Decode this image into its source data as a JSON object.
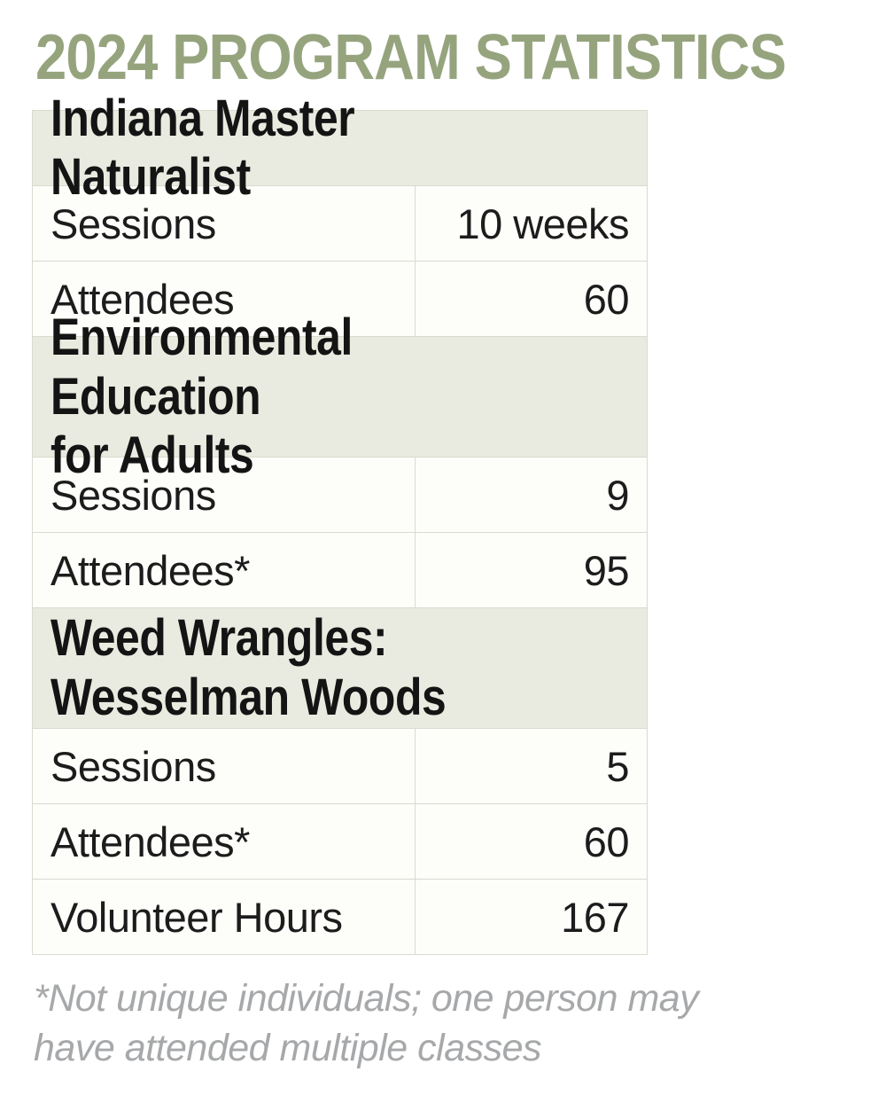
{
  "title": {
    "text": "2024 PROGRAM STATISTICS",
    "color": "#96a47e"
  },
  "table": {
    "header_bg": "#e9ebe0",
    "row_bg": "#fdfdfa",
    "border_color": "#d8dbce",
    "sections": [
      {
        "title": "Indiana Master Naturalist",
        "rows": [
          {
            "label": "Sessions",
            "value": "10 weeks"
          },
          {
            "label": "Attendees",
            "value": "60"
          }
        ]
      },
      {
        "title": "Environmental Education\nfor Adults",
        "rows": [
          {
            "label": "Sessions",
            "value": "9"
          },
          {
            "label": "Attendees*",
            "value": "95"
          }
        ]
      },
      {
        "title": "Weed Wrangles:\nWesselman Woods",
        "rows": [
          {
            "label": "Sessions",
            "value": "5"
          },
          {
            "label": "Attendees*",
            "value": "60"
          },
          {
            "label": "Volunteer Hours",
            "value": "167"
          }
        ]
      }
    ]
  },
  "footnote": {
    "text": "*Not unique individuals; one person may\nhave attended multiple classes"
  }
}
